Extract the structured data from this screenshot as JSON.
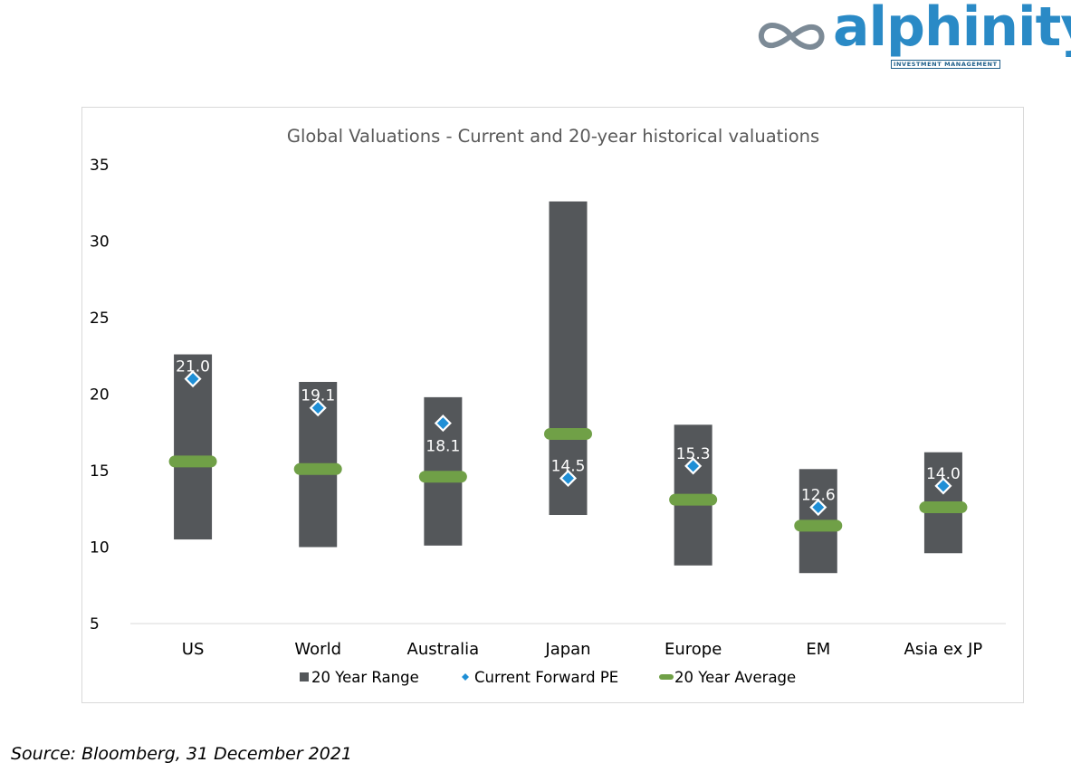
{
  "logo": {
    "name": "alphinity",
    "tagline": "INVESTMENT MANAGEMENT",
    "brand_color": "#2a8ac6"
  },
  "source": "Source:  Bloomberg, 31 December 2021",
  "chart_data": {
    "type": "bar",
    "title": "Global Valuations - Current and 20-year historical valuations",
    "categories": [
      "US",
      "World",
      "Australia",
      "Japan",
      "Europe",
      "EM",
      "Asia ex JP"
    ],
    "ylim": [
      5,
      35
    ],
    "yticks": [
      5,
      10,
      15,
      20,
      25,
      30,
      35
    ],
    "grid": false,
    "legend_position": "bottom",
    "series": [
      {
        "name": "20 Year Range",
        "kind": "floating-bar",
        "color": "#54575a",
        "low": [
          10.5,
          10.0,
          10.1,
          12.1,
          8.8,
          8.3,
          9.6
        ],
        "high": [
          22.6,
          20.8,
          19.8,
          32.6,
          18.0,
          15.1,
          16.2
        ]
      },
      {
        "name": "Current Forward PE",
        "kind": "marker",
        "color": "#1f8fd6",
        "values": [
          21.0,
          19.1,
          18.1,
          14.5,
          15.3,
          12.6,
          14.0
        ],
        "labels": [
          "21.0",
          "19.1",
          "18.1",
          "14.5",
          "15.3",
          "12.6",
          "14.0"
        ]
      },
      {
        "name": "20 Year Average",
        "kind": "dash",
        "color": "#70a047",
        "values": [
          15.6,
          15.1,
          14.6,
          17.4,
          13.1,
          11.4,
          12.6
        ]
      }
    ]
  }
}
